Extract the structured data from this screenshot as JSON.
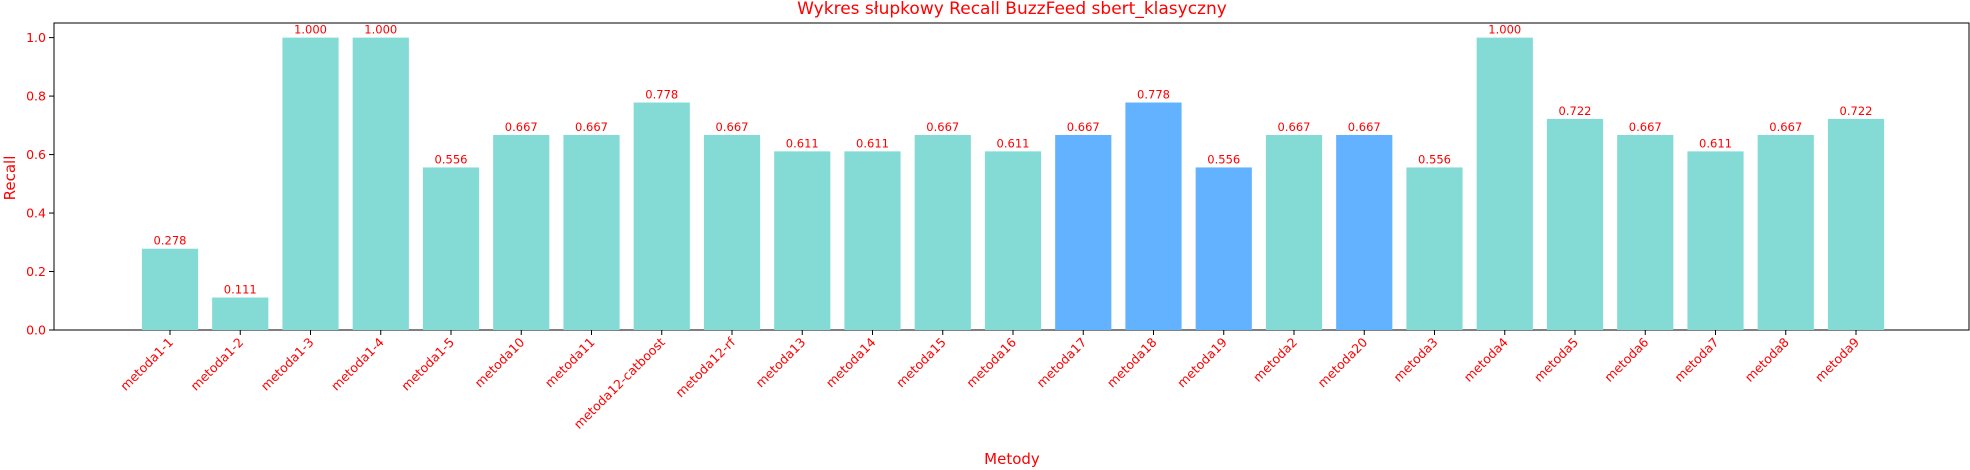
{
  "chart_data": {
    "type": "bar",
    "title": "Wykres słupkowy Recall BuzzFeed sbert_klasyczny",
    "xlabel": "Metody",
    "ylabel": "Recall",
    "ylim": [
      0,
      1.05
    ],
    "yticks": [
      0.0,
      0.2,
      0.4,
      0.6,
      0.8,
      1.0
    ],
    "categories": [
      "metoda1-1",
      "metoda1-2",
      "metoda1-3",
      "metoda1-4",
      "metoda1-5",
      "metoda10",
      "metoda11",
      "metoda12-catboost",
      "metoda12-rf",
      "metoda13",
      "metoda14",
      "metoda15",
      "metoda16",
      "metoda17",
      "metoda18",
      "metoda19",
      "metoda2",
      "metoda20",
      "metoda3",
      "metoda4",
      "metoda5",
      "metoda6",
      "metoda7",
      "metoda8",
      "metoda9"
    ],
    "values": [
      0.278,
      0.111,
      1.0,
      1.0,
      0.556,
      0.667,
      0.667,
      0.778,
      0.667,
      0.611,
      0.611,
      0.667,
      0.611,
      0.667,
      0.778,
      0.556,
      0.667,
      0.667,
      0.556,
      1.0,
      0.722,
      0.667,
      0.611,
      0.667,
      0.722
    ],
    "data_labels": [
      "0.278",
      "0.111",
      "1.000",
      "1.000",
      "0.556",
      "0.667",
      "0.667",
      "0.778",
      "0.667",
      "0.611",
      "0.611",
      "0.667",
      "0.611",
      "0.667",
      "0.778",
      "0.556",
      "0.667",
      "0.667",
      "0.556",
      "1.000",
      "0.722",
      "0.667",
      "0.611",
      "0.667",
      "0.722"
    ],
    "highlighted": [
      "metoda17",
      "metoda18",
      "metoda19",
      "metoda20"
    ],
    "colors": {
      "bar": "#84dbd6",
      "bar_highlight": "#62b2ff",
      "text": "#ff0000",
      "axis": "#000000"
    }
  }
}
